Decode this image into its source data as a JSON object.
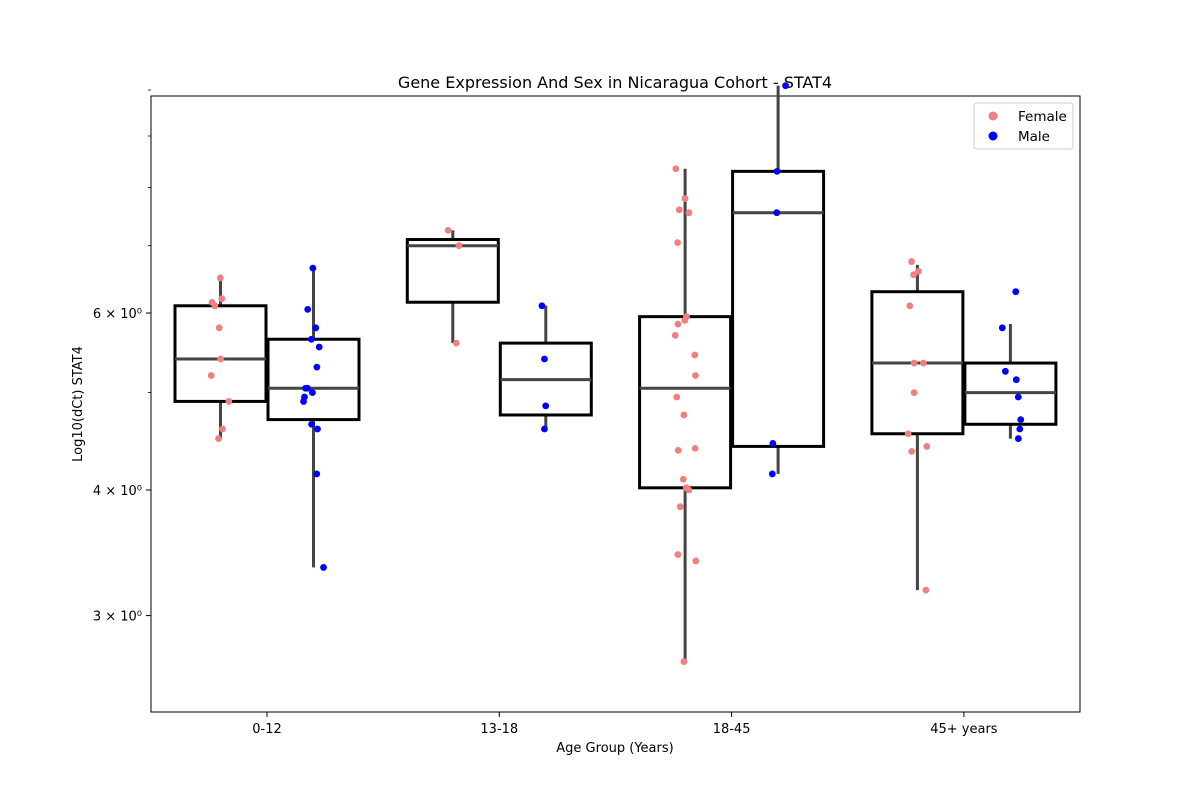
{
  "chart_data": {
    "type": "box",
    "title": "Gene Expression And Sex in Nicaragua Cohort - STAT4",
    "xlabel": "Age Group (Years)",
    "ylabel": "Log10(dCt) STAT4",
    "yscale": "log",
    "ylim": [
      2.6,
      10.5
    ],
    "yticks": [
      {
        "value": 3,
        "label": "3 × 10⁰"
      },
      {
        "value": 4,
        "label": "4 × 10⁰"
      },
      {
        "value": 6,
        "label": "6 × 10⁰"
      }
    ],
    "minor_yticks": [
      5,
      7,
      8,
      9,
      10
    ],
    "categories": [
      "0-12",
      "13-18",
      "18-45",
      "45+ years"
    ],
    "legend": {
      "position": "top-right"
    },
    "series": [
      {
        "name": "Female",
        "color": "#f08080",
        "boxes": [
          {
            "category": "0-12",
            "min": 4.5,
            "q1": 4.9,
            "median": 5.4,
            "q3": 6.1,
            "max": 6.55
          },
          {
            "category": "13-18",
            "min": 5.6,
            "q1": 6.15,
            "median": 7.0,
            "q3": 7.1,
            "max": 7.25
          },
          {
            "category": "18-45",
            "min": 2.7,
            "q1": 4.02,
            "median": 5.05,
            "q3": 5.95,
            "max": 8.35
          },
          {
            "category": "45+ years",
            "min": 3.18,
            "q1": 4.55,
            "median": 5.35,
            "q3": 6.3,
            "max": 6.7
          }
        ],
        "points": [
          {
            "category": "0-12",
            "y": [
              6.5,
              6.2,
              6.15,
              6.1,
              5.8,
              5.4,
              5.2,
              4.9,
              4.6,
              4.5
            ]
          },
          {
            "category": "13-18",
            "y": [
              7.25,
              7.0,
              5.6
            ]
          },
          {
            "category": "18-45",
            "y": [
              8.35,
              7.8,
              7.6,
              7.55,
              7.05,
              5.95,
              5.9,
              5.85,
              5.7,
              5.45,
              5.2,
              4.95,
              4.75,
              4.4,
              4.38,
              4.1,
              4.02,
              4.0,
              3.85,
              3.45,
              3.4,
              2.7
            ]
          },
          {
            "category": "45+ years",
            "y": [
              6.75,
              6.6,
              6.55,
              6.1,
              5.35,
              5.35,
              5.0,
              4.55,
              4.42,
              4.37,
              3.18
            ]
          }
        ]
      },
      {
        "name": "Male",
        "color": "#0000ff",
        "boxes": [
          {
            "category": "0-12",
            "min": 3.35,
            "q1": 4.7,
            "median": 5.05,
            "q3": 5.65,
            "max": 6.65
          },
          {
            "category": "13-18",
            "min": 4.6,
            "q1": 4.75,
            "median": 5.15,
            "q3": 5.6,
            "max": 6.1
          },
          {
            "category": "18-45",
            "min": 4.15,
            "q1": 4.42,
            "median": 7.55,
            "q3": 8.3,
            "max": 10.1
          },
          {
            "category": "45+ years",
            "min": 4.5,
            "q1": 4.65,
            "median": 5.0,
            "q3": 5.35,
            "max": 5.85
          }
        ],
        "points": [
          {
            "category": "0-12",
            "y": [
              6.65,
              6.05,
              5.8,
              5.65,
              5.55,
              5.3,
              5.05,
              5.05,
              5.0,
              4.95,
              4.9,
              4.65,
              4.6,
              4.15,
              3.35
            ]
          },
          {
            "category": "13-18",
            "y": [
              6.1,
              5.4,
              4.85,
              4.6
            ]
          },
          {
            "category": "18-45",
            "y": [
              10.1,
              8.3,
              7.55,
              4.45,
              4.15
            ]
          },
          {
            "category": "45+ years",
            "y": [
              6.3,
              5.8,
              5.25,
              5.15,
              4.95,
              4.7,
              4.6,
              4.5
            ]
          }
        ]
      }
    ]
  }
}
